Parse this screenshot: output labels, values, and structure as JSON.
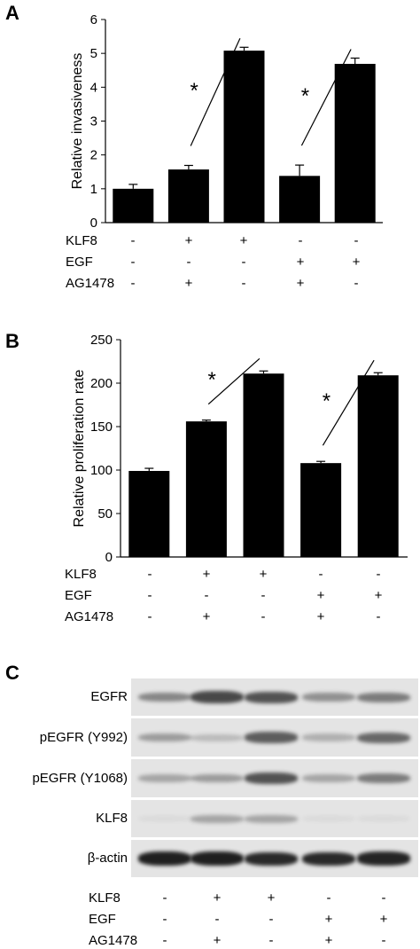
{
  "panels": {
    "A": "A",
    "B": "B",
    "C": "C"
  },
  "chart_data": [
    {
      "type": "bar",
      "ylabel": "Relative invasiveness",
      "ylim": [
        0,
        6
      ],
      "yticks": [
        "0",
        "1",
        "2",
        "3",
        "4",
        "5",
        "6"
      ],
      "values": [
        1.0,
        1.57,
        5.08,
        1.38,
        4.69
      ],
      "errors": [
        0.13,
        0.12,
        0.1,
        0.32,
        0.17
      ],
      "significance": [
        {
          "label": "*",
          "from": 1,
          "to": 2
        },
        {
          "label": "*",
          "from": 3,
          "to": 4
        }
      ],
      "bar_color": "#000000",
      "grid": false
    },
    {
      "type": "bar",
      "ylabel": "Relative proliferation rate",
      "ylim": [
        0,
        250
      ],
      "yticks": [
        "0",
        "50",
        "100",
        "150",
        "200",
        "250"
      ],
      "values": [
        99,
        156,
        211,
        108,
        209
      ],
      "errors": [
        3,
        1.5,
        3,
        2,
        3
      ],
      "significance": [
        {
          "label": "*",
          "from": 1,
          "to": 2
        },
        {
          "label": "*",
          "from": 3,
          "to": 4
        }
      ],
      "bar_color": "#000000",
      "grid": false
    }
  ],
  "conditions": [
    {
      "name": "KLF8",
      "values": [
        "-",
        "+",
        "+",
        "-",
        "-"
      ]
    },
    {
      "name": "EGF",
      "values": [
        "-",
        "-",
        "-",
        "+",
        "+"
      ]
    },
    {
      "name": "AG1478",
      "values": [
        "-",
        "+",
        "-",
        "+",
        "-"
      ]
    }
  ],
  "western_blot": {
    "rows": [
      {
        "label": "EGFR",
        "intensity": [
          0.45,
          0.75,
          0.7,
          0.4,
          0.5
        ]
      },
      {
        "label": "pEGFR (Y992)",
        "intensity": [
          0.35,
          0.2,
          0.65,
          0.25,
          0.6
        ]
      },
      {
        "label": "pEGFR (Y1068)",
        "intensity": [
          0.3,
          0.35,
          0.7,
          0.3,
          0.5
        ]
      },
      {
        "label": "KLF8",
        "intensity": [
          0.05,
          0.3,
          0.3,
          0.05,
          0.05
        ]
      },
      {
        "label": "β-actin",
        "intensity": [
          0.95,
          0.95,
          0.9,
          0.9,
          0.92
        ]
      }
    ]
  }
}
